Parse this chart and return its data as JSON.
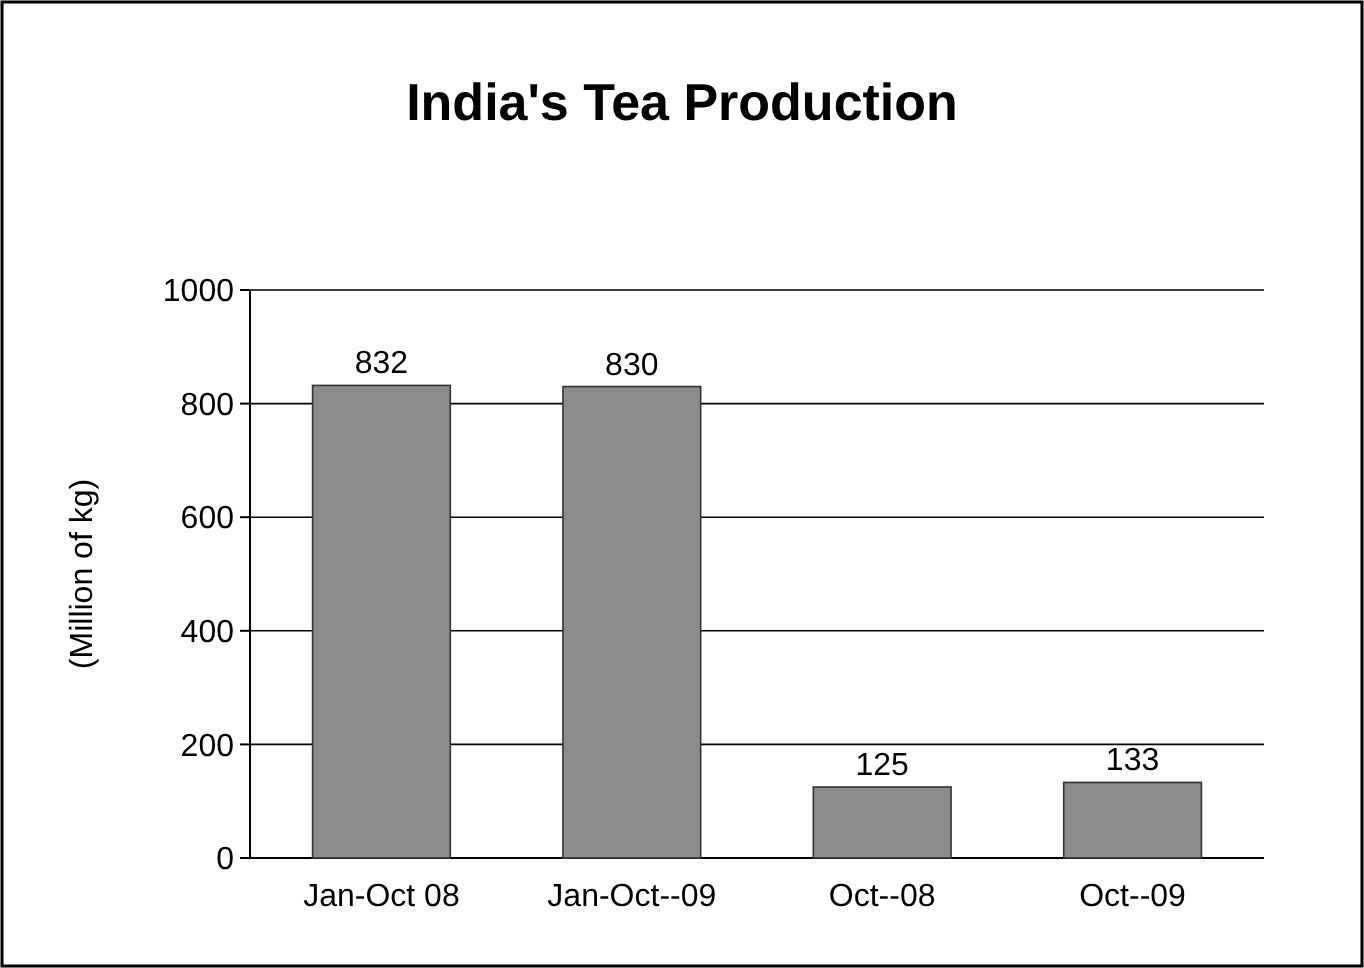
{
  "chart_data": {
    "type": "bar",
    "title": "India's Tea Production",
    "ylabel": "(Million of kg)",
    "categories": [
      "Jan-Oct 08",
      "Jan-Oct--09",
      "Oct--08",
      "Oct--09"
    ],
    "values": [
      832,
      830,
      125,
      133
    ],
    "color": "#8c8c8c",
    "ylim": [
      0,
      1000
    ],
    "yticks": [
      0,
      200,
      400,
      600,
      800,
      1000
    ],
    "grid": "y",
    "data_labels": true
  }
}
